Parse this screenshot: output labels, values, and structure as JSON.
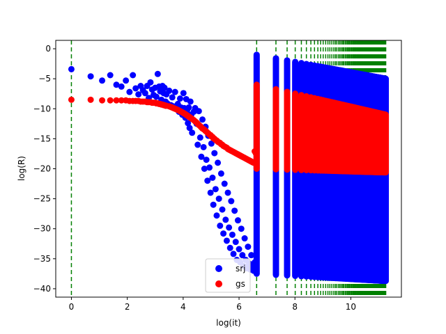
{
  "chart_data": {
    "type": "scatter",
    "xlabel": "log(it)",
    "ylabel": "log(R)",
    "xlim": [
      -0.56,
      11.81
    ],
    "ylim": [
      -41.4,
      1.4
    ],
    "x_ticks": [
      0,
      2,
      4,
      6,
      8,
      10
    ],
    "y_ticks": [
      0,
      -5,
      -10,
      -15,
      -20,
      -25,
      -30,
      -35,
      -40
    ],
    "grid": false,
    "legend_position": "lower-center",
    "series": [
      {
        "name": "srj",
        "color": "#0000ff",
        "marker": "circle",
        "points": [
          [
            0.0,
            -3.4
          ],
          [
            0.69,
            -4.6
          ],
          [
            1.1,
            -5.3
          ],
          [
            1.39,
            -4.4
          ],
          [
            1.61,
            -6.0
          ],
          [
            1.79,
            -6.3
          ],
          [
            1.95,
            -5.3
          ],
          [
            2.08,
            -7.2
          ],
          [
            2.2,
            -4.4
          ],
          [
            2.3,
            -6.6
          ],
          [
            2.4,
            -7.6
          ],
          [
            2.48,
            -6.2
          ],
          [
            2.56,
            -6.9
          ],
          [
            2.64,
            -7.4
          ],
          [
            2.71,
            -6.2
          ],
          [
            2.77,
            -8.2
          ],
          [
            2.83,
            -5.6
          ],
          [
            2.89,
            -6.8
          ],
          [
            2.94,
            -7.7
          ],
          [
            3.0,
            -6.5
          ],
          [
            3.04,
            -8.0
          ],
          [
            3.09,
            -4.2
          ],
          [
            3.14,
            -6.3
          ],
          [
            3.18,
            -7.1
          ],
          [
            3.22,
            -8.5
          ],
          [
            3.26,
            -6.2
          ],
          [
            3.3,
            -7.4
          ],
          [
            3.33,
            -6.5
          ],
          [
            3.37,
            -8.8
          ],
          [
            3.4,
            -7.6
          ],
          [
            3.43,
            -9.1
          ],
          [
            3.5,
            -7.0
          ],
          [
            3.56,
            -9.4
          ],
          [
            3.61,
            -8.1
          ],
          [
            3.66,
            -9.6
          ],
          [
            3.71,
            -7.2
          ],
          [
            3.76,
            -10.0
          ],
          [
            3.81,
            -9.2
          ],
          [
            3.85,
            -10.5
          ],
          [
            3.89,
            -8.3
          ],
          [
            3.93,
            -9.8
          ],
          [
            3.97,
            -11.0
          ],
          [
            4.01,
            -7.4
          ],
          [
            4.04,
            -9.9
          ],
          [
            4.08,
            -11.5
          ],
          [
            4.11,
            -8.4
          ],
          [
            4.14,
            -10.3
          ],
          [
            4.17,
            -12.4
          ],
          [
            4.2,
            -9.8
          ],
          [
            4.23,
            -13.2
          ],
          [
            4.26,
            -8.8
          ],
          [
            4.29,
            -11.0
          ],
          [
            4.32,
            -14.0
          ],
          [
            4.38,
            -10.5
          ],
          [
            4.43,
            -9.9
          ],
          [
            4.48,
            -12.5
          ],
          [
            4.52,
            -16.0
          ],
          [
            4.56,
            -10.4
          ],
          [
            4.61,
            -14.8
          ],
          [
            4.65,
            -18.0
          ],
          [
            4.69,
            -11.8
          ],
          [
            4.73,
            -16.4
          ],
          [
            4.76,
            -20.0
          ],
          [
            4.8,
            -13.0
          ],
          [
            4.83,
            -18.5
          ],
          [
            4.87,
            -22.0
          ],
          [
            4.9,
            -14.5
          ],
          [
            4.94,
            -19.8
          ],
          [
            4.98,
            -24.0
          ],
          [
            5.01,
            -15.8
          ],
          [
            5.05,
            -21.5
          ],
          [
            5.08,
            -26.0
          ],
          [
            5.12,
            -17.4
          ],
          [
            5.16,
            -23.4
          ],
          [
            5.2,
            -27.8
          ],
          [
            5.24,
            -19.0
          ],
          [
            5.28,
            -25.0
          ],
          [
            5.32,
            -29.5
          ],
          [
            5.36,
            -20.8
          ],
          [
            5.4,
            -26.8
          ],
          [
            5.44,
            -30.8
          ],
          [
            5.48,
            -22.5
          ],
          [
            5.52,
            -28.5
          ],
          [
            5.56,
            -32.0
          ],
          [
            5.6,
            -24.0
          ],
          [
            5.64,
            -29.8
          ],
          [
            5.68,
            -33.2
          ],
          [
            5.72,
            -25.4
          ],
          [
            5.76,
            -31.0
          ],
          [
            5.8,
            -34.2
          ],
          [
            5.84,
            -27.0
          ],
          [
            5.88,
            -32.2
          ],
          [
            5.92,
            -35.2
          ],
          [
            5.96,
            -28.6
          ],
          [
            6.0,
            -33.4
          ],
          [
            6.04,
            -35.6
          ],
          [
            6.08,
            -30.0
          ],
          [
            6.12,
            -34.4
          ],
          [
            6.16,
            -36.2
          ],
          [
            6.2,
            -31.6
          ],
          [
            6.24,
            -35.2
          ],
          [
            6.28,
            -36.6
          ],
          [
            6.32,
            -33.0
          ],
          [
            6.36,
            -35.8
          ],
          [
            6.4,
            -36.8
          ],
          [
            6.44,
            -34.4
          ],
          [
            6.48,
            -36.3
          ],
          [
            6.52,
            -37.0
          ],
          [
            6.56,
            -35.6
          ],
          [
            6.6,
            -36.6
          ]
        ]
      },
      {
        "name": "gs",
        "color": "#ff0000",
        "marker": "circle",
        "points": [
          [
            0.0,
            -8.5
          ],
          [
            0.69,
            -8.5
          ],
          [
            1.1,
            -8.6
          ],
          [
            1.39,
            -8.6
          ],
          [
            1.61,
            -8.6
          ],
          [
            1.79,
            -8.6
          ],
          [
            1.95,
            -8.6
          ],
          [
            2.08,
            -8.7
          ],
          [
            2.2,
            -8.7
          ],
          [
            2.3,
            -8.7
          ],
          [
            2.4,
            -8.7
          ],
          [
            2.48,
            -8.8
          ],
          [
            2.56,
            -8.8
          ],
          [
            2.64,
            -8.8
          ],
          [
            2.71,
            -8.9
          ],
          [
            2.77,
            -8.9
          ],
          [
            2.83,
            -8.9
          ],
          [
            2.89,
            -9.0
          ],
          [
            2.94,
            -9.0
          ],
          [
            3.0,
            -9.0
          ],
          [
            3.04,
            -9.1
          ],
          [
            3.09,
            -9.1
          ],
          [
            3.14,
            -9.2
          ],
          [
            3.18,
            -9.2
          ],
          [
            3.22,
            -9.3
          ],
          [
            3.26,
            -9.3
          ],
          [
            3.3,
            -9.4
          ],
          [
            3.33,
            -9.4
          ],
          [
            3.37,
            -9.5
          ],
          [
            3.4,
            -9.5
          ],
          [
            3.5,
            -9.6
          ],
          [
            3.56,
            -9.7
          ],
          [
            3.61,
            -9.8
          ],
          [
            3.66,
            -9.9
          ],
          [
            3.71,
            -10.0
          ],
          [
            3.76,
            -10.1
          ],
          [
            3.81,
            -10.2
          ],
          [
            3.85,
            -10.3
          ],
          [
            3.89,
            -10.4
          ],
          [
            3.93,
            -10.5
          ],
          [
            3.97,
            -10.6
          ],
          [
            4.01,
            -10.7
          ],
          [
            4.04,
            -10.8
          ],
          [
            4.08,
            -10.9
          ],
          [
            4.11,
            -11.0
          ],
          [
            4.14,
            -11.1
          ],
          [
            4.17,
            -11.2
          ],
          [
            4.2,
            -11.3
          ],
          [
            4.23,
            -11.4
          ],
          [
            4.26,
            -11.5
          ],
          [
            4.29,
            -11.6
          ],
          [
            4.32,
            -11.7
          ],
          [
            4.38,
            -11.9
          ],
          [
            4.43,
            -12.1
          ],
          [
            4.48,
            -12.3
          ],
          [
            4.52,
            -12.5
          ],
          [
            4.56,
            -12.7
          ],
          [
            4.61,
            -12.9
          ],
          [
            4.65,
            -13.1
          ],
          [
            4.69,
            -13.3
          ],
          [
            4.73,
            -13.4
          ],
          [
            4.76,
            -13.5
          ],
          [
            4.8,
            -13.7
          ],
          [
            4.83,
            -13.8
          ],
          [
            4.87,
            -14.0
          ],
          [
            4.9,
            -14.1
          ],
          [
            4.94,
            -14.3
          ],
          [
            4.98,
            -14.4
          ],
          [
            5.01,
            -14.6
          ],
          [
            5.05,
            -14.7
          ],
          [
            5.08,
            -14.9
          ],
          [
            5.12,
            -15.0
          ],
          [
            5.16,
            -15.2
          ],
          [
            5.2,
            -15.3
          ],
          [
            5.24,
            -15.5
          ],
          [
            5.28,
            -15.6
          ],
          [
            5.32,
            -15.7
          ],
          [
            5.36,
            -15.9
          ],
          [
            5.4,
            -16.0
          ],
          [
            5.44,
            -16.2
          ],
          [
            5.48,
            -16.3
          ],
          [
            5.52,
            -16.4
          ],
          [
            5.56,
            -16.5
          ],
          [
            5.6,
            -16.7
          ],
          [
            5.64,
            -16.8
          ],
          [
            5.68,
            -16.9
          ],
          [
            5.72,
            -17.0
          ],
          [
            5.76,
            -17.1
          ],
          [
            5.8,
            -17.2
          ],
          [
            5.84,
            -17.3
          ],
          [
            5.88,
            -17.4
          ],
          [
            5.92,
            -17.5
          ],
          [
            5.96,
            -17.6
          ],
          [
            6.0,
            -17.7
          ],
          [
            6.04,
            -17.8
          ],
          [
            6.08,
            -17.9
          ],
          [
            6.12,
            -18.0
          ],
          [
            6.16,
            -18.1
          ],
          [
            6.2,
            -18.2
          ],
          [
            6.24,
            -18.3
          ],
          [
            6.28,
            -18.4
          ],
          [
            6.32,
            -18.5
          ],
          [
            6.36,
            -18.6
          ],
          [
            6.4,
            -18.7
          ],
          [
            6.44,
            -18.8
          ],
          [
            6.48,
            -18.9
          ],
          [
            6.52,
            -19.0
          ],
          [
            6.56,
            -17.1
          ],
          [
            6.6,
            -17.4
          ]
        ]
      }
    ],
    "restart_lines": {
      "color": "#008000",
      "style": "dashed",
      "x": [
        0.0,
        6.63,
        7.32,
        7.72,
        8.01,
        8.23,
        8.41,
        8.57,
        8.7,
        8.82,
        8.92,
        9.01,
        9.1,
        9.18,
        9.25,
        9.32,
        9.39,
        9.45,
        9.5,
        9.56,
        9.61,
        9.66,
        9.71,
        9.75,
        9.8,
        9.84,
        9.88,
        9.92,
        9.95,
        9.99,
        10.02,
        10.06,
        10.09,
        10.12,
        10.15,
        10.18,
        10.21,
        10.24,
        10.27,
        10.29,
        10.32,
        10.35,
        10.37,
        10.4,
        10.42,
        10.44,
        10.47,
        10.49,
        10.51,
        10.53,
        10.55,
        10.57,
        10.59,
        10.61,
        10.63,
        10.65,
        10.67,
        10.69,
        10.71,
        10.73,
        10.75,
        10.76,
        10.78,
        10.8,
        10.82,
        10.83,
        10.85,
        10.87,
        10.88,
        10.9,
        10.91,
        10.93,
        10.95,
        10.96,
        10.98,
        10.99,
        11.01,
        11.02,
        11.04,
        11.05,
        11.06,
        11.08,
        11.09,
        11.11,
        11.12,
        11.13,
        11.15,
        11.16,
        11.17,
        11.18,
        11.2,
        11.21,
        11.22,
        11.23,
        11.25
      ]
    },
    "restart_segments": {
      "srj": {
        "y_top": -1.0,
        "y_bottom": -37.5,
        "tail_top": -5.0,
        "tail_bottom": -38.7
      },
      "gs": {
        "y_top": -6.0,
        "y_bottom": -20.0,
        "tail_top": -11.0,
        "tail_bottom": -20.6
      }
    }
  }
}
